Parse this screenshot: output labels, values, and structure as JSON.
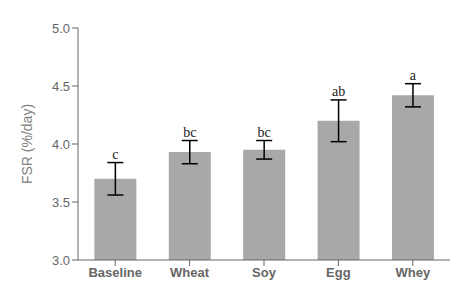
{
  "chart_data": {
    "type": "bar",
    "categories": [
      "Baseline",
      "Wheat",
      "Soy",
      "Egg",
      "Whey"
    ],
    "values": [
      3.7,
      3.93,
      3.95,
      4.2,
      4.42
    ],
    "errors": [
      0.14,
      0.1,
      0.08,
      0.18,
      0.1
    ],
    "significance_labels": [
      "c",
      "bc",
      "bc",
      "ab",
      "a"
    ],
    "color": "#a8a8a8",
    "ylabel": "FSR (%/day)",
    "ylim": [
      3.0,
      5.0
    ],
    "yticks": [
      {
        "value": 3.0,
        "label": "3.0"
      },
      3.5,
      {
        "value": 4.0,
        "label": "4.0"
      },
      4.5,
      {
        "value": 5.0,
        "label": "5.0"
      }
    ],
    "grid": false
  }
}
